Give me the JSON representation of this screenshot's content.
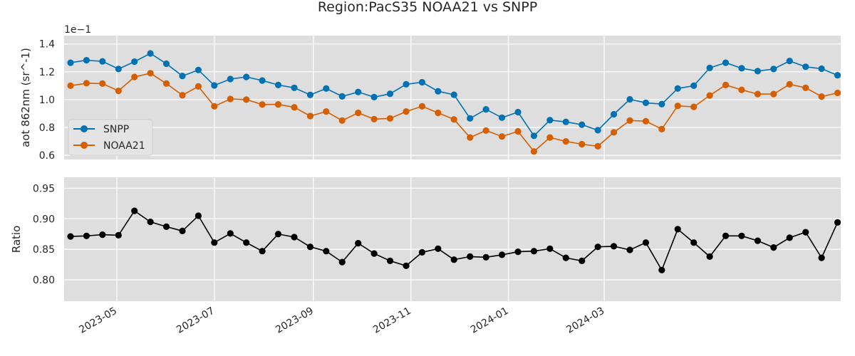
{
  "chart_data": [
    {
      "type": "line",
      "title": "Region:PacS35 NOAA21 vs SNPP",
      "ylabel": "aot 862nm (sr^-1)",
      "offset_text": "1e−1",
      "y_ticks": [
        0.6,
        0.8,
        1.0,
        1.2,
        1.4
      ],
      "y_tick_labels": [
        "0.6",
        "0.8",
        "1.0",
        "1.2",
        "1.4"
      ],
      "ylim": [
        0.57,
        1.46
      ],
      "grid": true,
      "legend_placement": "center-left",
      "series": [
        {
          "name": "SNPP",
          "color": "#0072b2",
          "values": [
            1.265,
            1.283,
            1.275,
            1.22,
            1.273,
            1.332,
            1.258,
            1.17,
            1.213,
            1.102,
            1.148,
            1.163,
            1.137,
            1.105,
            1.085,
            1.034,
            1.08,
            1.023,
            1.055,
            1.018,
            1.042,
            1.11,
            1.125,
            1.06,
            1.035,
            0.865,
            0.93,
            0.87,
            0.91,
            0.74,
            0.853,
            0.84,
            0.82,
            0.78,
            0.895,
            1.002,
            0.977,
            0.968,
            1.08,
            1.1,
            1.228,
            1.265,
            1.225,
            1.205,
            1.22,
            1.278,
            1.236,
            1.222,
            1.175
          ]
        },
        {
          "name": "NOAA21",
          "color": "#d55e00",
          "values": [
            1.1,
            1.118,
            1.115,
            1.063,
            1.163,
            1.19,
            1.115,
            1.032,
            1.095,
            0.952,
            1.005,
            1.0,
            0.965,
            0.966,
            0.945,
            0.882,
            0.915,
            0.85,
            0.905,
            0.86,
            0.865,
            0.915,
            0.952,
            0.905,
            0.858,
            0.728,
            0.778,
            0.735,
            0.772,
            0.628,
            0.728,
            0.7,
            0.68,
            0.665,
            0.765,
            0.85,
            0.845,
            0.788,
            0.955,
            0.948,
            1.03,
            1.105,
            1.07,
            1.04,
            1.04,
            1.11,
            1.085,
            1.022,
            1.048
          ]
        }
      ]
    },
    {
      "type": "line",
      "ylabel": "Ratio",
      "y_ticks": [
        0.8,
        0.85,
        0.9,
        0.95
      ],
      "y_tick_labels": [
        "0.80",
        "0.85",
        "0.90",
        "0.95"
      ],
      "ylim": [
        0.765,
        0.968
      ],
      "grid": true,
      "x_ticks": [
        "2023-05",
        "2023-07",
        "2023-09",
        "2023-11",
        "2024-01",
        "2024-03"
      ],
      "series": [
        {
          "color": "#000000",
          "values": [
            0.871,
            0.872,
            0.874,
            0.873,
            0.913,
            0.895,
            0.887,
            0.88,
            0.905,
            0.861,
            0.876,
            0.861,
            0.847,
            0.875,
            0.87,
            0.854,
            0.847,
            0.829,
            0.86,
            0.843,
            0.831,
            0.823,
            0.845,
            0.851,
            0.833,
            0.838,
            0.837,
            0.841,
            0.846,
            0.847,
            0.851,
            0.836,
            0.831,
            0.854,
            0.855,
            0.849,
            0.861,
            0.816,
            0.883,
            0.861,
            0.838,
            0.872,
            0.872,
            0.864,
            0.853,
            0.869,
            0.878,
            0.836,
            0.894
          ]
        }
      ]
    }
  ],
  "x_dates": [
    "2023-04-02",
    "2023-04-12",
    "2023-04-22",
    "2023-05-02",
    "2023-05-12",
    "2023-05-22",
    "2023-06-01",
    "2023-06-11",
    "2023-06-21",
    "2023-07-01",
    "2023-07-11",
    "2023-07-21",
    "2023-07-31",
    "2023-08-10",
    "2023-08-20",
    "2023-08-30",
    "2023-09-09",
    "2023-09-19",
    "2023-09-29",
    "2023-10-09",
    "2023-10-19",
    "2023-10-29",
    "2023-11-08",
    "2023-11-18",
    "2023-11-28",
    "2023-12-08",
    "2023-12-18",
    "2023-12-28",
    "2024-01-07",
    "2024-01-17",
    "2024-01-27",
    "2024-02-06",
    "2024-02-16",
    "2024-02-26",
    "2024-03-07",
    "2024-03-17",
    "2024-03-27",
    "2024-04-06",
    "2024-04-16",
    "2024-04-26",
    "2024-05-06",
    "2024-05-16",
    "2024-05-26",
    "2024-06-05",
    "2024-06-15",
    "2024-06-25",
    "2024-07-05",
    "2024-07-15",
    "2024-07-25"
  ]
}
